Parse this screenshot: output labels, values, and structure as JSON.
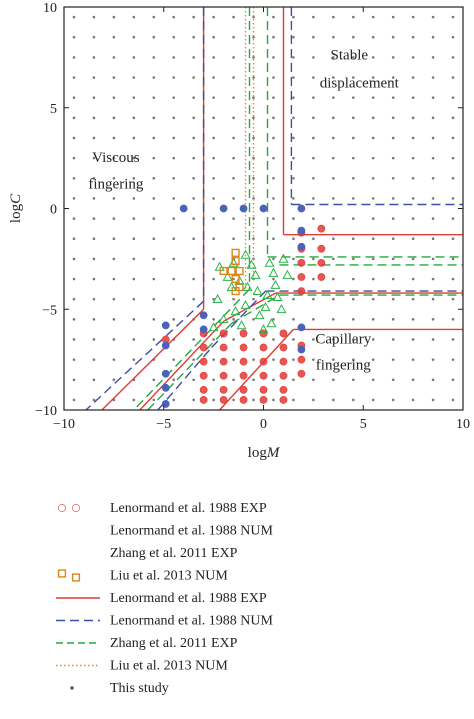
{
  "chart_data": {
    "type": "scatter",
    "title": "",
    "xlabel": "logM",
    "ylabel": "logC",
    "xlim": [
      -10,
      10
    ],
    "ylim": [
      -10,
      10
    ],
    "xticks": [
      "−10",
      "−5",
      "0",
      "5",
      "10"
    ],
    "yticks": [
      "10",
      "5",
      "0",
      "−5",
      "−10"
    ],
    "grid": false,
    "annotations": [
      {
        "text": "Stable",
        "x": 4.3,
        "y": 7.4
      },
      {
        "text": "displacement",
        "x": 4.8,
        "y": 6.0
      },
      {
        "text": "Viscous",
        "x": -7.4,
        "y": 2.3
      },
      {
        "text": "fingering",
        "x": -7.4,
        "y": 1.0
      },
      {
        "text": "Capillary",
        "x": 4.0,
        "y": -6.7
      },
      {
        "text": "fingering",
        "x": 4.0,
        "y": -8.0
      }
    ],
    "legend_position": "below",
    "legend": [
      {
        "text": "Lenormand et al. 1988 EXP",
        "marker": "circle-red"
      },
      {
        "text": "Lenormand et al. 1988 NUM",
        "marker": "none"
      },
      {
        "text": "Zhang et al. 2011 EXP",
        "marker": "none"
      },
      {
        "text": "Liu et al. 2013 NUM",
        "marker": "square-orange"
      },
      {
        "text": "Lenormand et al. 1988 EXP",
        "marker": "line-solid-red"
      },
      {
        "text": "Lenormand et al. 1988 NUM",
        "marker": "line-dash-blue"
      },
      {
        "text": "Zhang et al. 2011 EXP",
        "marker": "line-dash-green"
      },
      {
        "text": "Liu et al. 2013 NUM",
        "marker": "line-dot-orange"
      },
      {
        "text": "This study",
        "marker": "dot-gray"
      }
    ],
    "series": [
      {
        "name": "Lenormand et al. 1988 EXP",
        "kind": "points",
        "marker": "circle",
        "color": "#e23a36",
        "points": [
          [
            1.9,
            -1.2
          ],
          [
            1.9,
            -2.0
          ],
          [
            1.9,
            -2.7
          ],
          [
            1.9,
            -3.4
          ],
          [
            1.9,
            -4.1
          ],
          [
            2.9,
            -1.0
          ],
          [
            2.9,
            -2.0
          ],
          [
            2.9,
            -2.7
          ],
          [
            2.9,
            -3.4
          ],
          [
            1.9,
            -6.8
          ],
          [
            1.9,
            -7.5
          ],
          [
            1.9,
            -8.2
          ],
          [
            -3.0,
            -6.2
          ],
          [
            -3.0,
            -6.9
          ],
          [
            -3.0,
            -7.6
          ],
          [
            -3.0,
            -8.3
          ],
          [
            -3.0,
            -9.0
          ],
          [
            -3.0,
            -9.5
          ],
          [
            -2.0,
            -6.2
          ],
          [
            -2.0,
            -6.9
          ],
          [
            -2.0,
            -7.6
          ],
          [
            -2.0,
            -8.3
          ],
          [
            -2.0,
            -9.0
          ],
          [
            -2.0,
            -9.5
          ],
          [
            -1.0,
            -6.2
          ],
          [
            -1.0,
            -6.9
          ],
          [
            -1.0,
            -7.6
          ],
          [
            -1.0,
            -8.3
          ],
          [
            -1.0,
            -9.0
          ],
          [
            -1.0,
            -9.5
          ],
          [
            0.0,
            -6.2
          ],
          [
            0.0,
            -6.9
          ],
          [
            0.0,
            -7.6
          ],
          [
            0.0,
            -8.3
          ],
          [
            0.0,
            -9.0
          ],
          [
            0.0,
            -9.5
          ],
          [
            1.0,
            -6.2
          ],
          [
            1.0,
            -6.9
          ],
          [
            1.0,
            -7.6
          ],
          [
            1.0,
            -8.3
          ],
          [
            1.0,
            -9.0
          ],
          [
            1.0,
            -9.5
          ],
          [
            -4.9,
            -6.5
          ]
        ]
      },
      {
        "name": "Lenormand et al. 1988 NUM",
        "kind": "points",
        "marker": "circle",
        "color": "#4a62b8",
        "points": [
          [
            -4.0,
            0.0
          ],
          [
            -2.0,
            0.0
          ],
          [
            -1.0,
            0.0
          ],
          [
            0.0,
            0.0
          ],
          [
            1.9,
            0.0
          ],
          [
            1.9,
            -1.1
          ],
          [
            1.9,
            -1.9
          ],
          [
            1.9,
            -5.9
          ],
          [
            1.9,
            -7.0
          ],
          [
            -4.9,
            -5.8
          ],
          [
            -4.9,
            -6.8
          ],
          [
            -4.9,
            -8.2
          ],
          [
            -4.9,
            -8.9
          ],
          [
            -4.9,
            -9.7
          ],
          [
            -3.0,
            -5.3
          ],
          [
            -3.0,
            -6.0
          ]
        ]
      },
      {
        "name": "Zhang et al. 2011 EXP",
        "kind": "points",
        "marker": "triangle",
        "color": "#2db34a",
        "points": [
          [
            -2.2,
            -2.9
          ],
          [
            -1.8,
            -3.4
          ],
          [
            -1.5,
            -2.7
          ],
          [
            -1.2,
            -3.6
          ],
          [
            -0.8,
            -3.9
          ],
          [
            -0.6,
            -2.8
          ],
          [
            -0.4,
            -3.3
          ],
          [
            -0.3,
            -4.1
          ],
          [
            0.3,
            -2.7
          ],
          [
            0.5,
            -3.2
          ],
          [
            0.6,
            -3.8
          ],
          [
            0.2,
            -4.3
          ],
          [
            0.1,
            -4.9
          ],
          [
            -0.2,
            -5.3
          ],
          [
            -0.9,
            -4.8
          ],
          [
            -1.4,
            -5.1
          ],
          [
            -2.0,
            -5.5
          ],
          [
            -2.5,
            -5.9
          ],
          [
            0.4,
            -5.7
          ],
          [
            0.9,
            -5.0
          ],
          [
            0.7,
            -4.4
          ],
          [
            1.2,
            -3.3
          ],
          [
            1.0,
            -2.5
          ],
          [
            -0.9,
            -2.3
          ],
          [
            -1.6,
            -3.9
          ],
          [
            -2.3,
            -4.5
          ],
          [
            -1.1,
            -5.8
          ],
          [
            0.0,
            -6.0
          ]
        ]
      },
      {
        "name": "Liu et al. 2013 NUM",
        "kind": "points",
        "marker": "square",
        "color": "#d9861a",
        "points": [
          [
            -1.4,
            -2.2
          ],
          [
            -1.4,
            -2.6
          ],
          [
            -2.0,
            -3.1
          ],
          [
            -1.6,
            -3.1
          ],
          [
            -1.2,
            -3.1
          ],
          [
            -1.4,
            -3.5
          ],
          [
            -1.2,
            -3.9
          ],
          [
            -1.4,
            -4.1
          ]
        ]
      },
      {
        "name": "Lenormand et al. 1988 EXP",
        "kind": "lines",
        "color": "#e23a36",
        "dash": "solid",
        "lines": [
          [
            [
              -10,
              -10
            ],
            [
              -10,
              -10
            ]
          ],
          [
            [
              -3.0,
              10
            ],
            [
              -3.0,
              -5.0
            ]
          ],
          [
            [
              -3.0,
              -5.0
            ],
            [
              -8.1,
              -10
            ]
          ],
          [
            [
              1.0,
              10
            ],
            [
              1.0,
              -1.3
            ]
          ],
          [
            [
              1.0,
              -1.3
            ],
            [
              10,
              -1.3
            ]
          ],
          [
            [
              -6.2,
              -10
            ],
            [
              -2.0,
              -5.6
            ]
          ],
          [
            [
              -2.0,
              -5.6
            ],
            [
              0.6,
              -4.2
            ]
          ],
          [
            [
              0.6,
              -4.2
            ],
            [
              10,
              -4.2
            ]
          ],
          [
            [
              -2.2,
              -10
            ],
            [
              1.5,
              -6.0
            ]
          ],
          [
            [
              1.5,
              -6.0
            ],
            [
              10,
              -6.0
            ]
          ]
        ]
      },
      {
        "name": "Lenormand et al. 1988 NUM",
        "kind": "lines",
        "color": "#3b4fa8",
        "dash": "dash",
        "lines": [
          [
            [
              -3.0,
              10
            ],
            [
              -3.0,
              -4.6
            ]
          ],
          [
            [
              -3.0,
              -4.6
            ],
            [
              -8.9,
              -10
            ]
          ],
          [
            [
              1.4,
              10
            ],
            [
              1.4,
              0.2
            ]
          ],
          [
            [
              1.4,
              0.2
            ],
            [
              10,
              0.2
            ]
          ],
          [
            [
              -5.3,
              -10
            ],
            [
              -2.6,
              -6.9
            ]
          ],
          [
            [
              -2.6,
              -6.9
            ],
            [
              0.1,
              -4.1
            ]
          ],
          [
            [
              0.1,
              -4.1
            ],
            [
              10,
              -4.1
            ]
          ]
        ]
      },
      {
        "name": "Zhang et al. 2011 EXP",
        "kind": "lines",
        "color": "#22aa3b",
        "dash": "dash",
        "lines": [
          [
            [
              -0.7,
              10
            ],
            [
              -0.7,
              -4.0
            ]
          ],
          [
            [
              -0.7,
              -4.0
            ],
            [
              -6.5,
              -10
            ]
          ],
          [
            [
              0.2,
              10
            ],
            [
              0.2,
              -2.4
            ]
          ],
          [
            [
              0.2,
              -2.4
            ],
            [
              10,
              -2.4
            ]
          ],
          [
            [
              -5.8,
              -10
            ],
            [
              -1.6,
              -5.7
            ]
          ],
          [
            [
              -1.6,
              -5.7
            ],
            [
              0.8,
              -4.3
            ]
          ],
          [
            [
              0.8,
              -4.3
            ],
            [
              10,
              -4.3
            ]
          ],
          [
            [
              0.8,
              -2.8
            ],
            [
              10,
              -2.8
            ]
          ]
        ]
      },
      {
        "name": "Liu et al. 2013 NUM",
        "kind": "lines",
        "color": "#e08a2a",
        "dash": "dot",
        "lines": [
          [
            [
              -0.9,
              10
            ],
            [
              -0.9,
              -4.0
            ]
          ],
          [
            [
              -0.5,
              10
            ],
            [
              -0.5,
              -3.6
            ]
          ]
        ]
      },
      {
        "name": "This study",
        "kind": "grid",
        "marker": "dot",
        "color": "#777777",
        "x_start": -9.5,
        "x_end": 9.5,
        "x_step": 1,
        "y_start": 9.5,
        "y_end": -9.5,
        "y_step": -1
      }
    ]
  }
}
